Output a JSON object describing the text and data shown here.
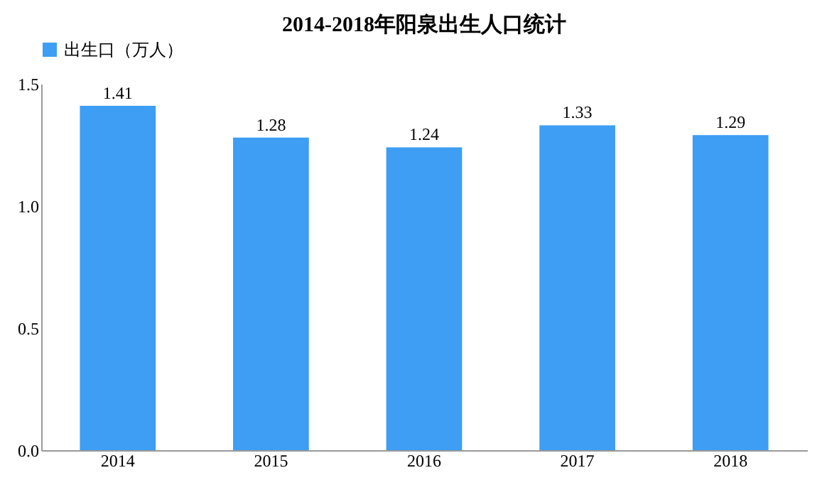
{
  "chart_data": {
    "type": "bar",
    "title": "2014-2018年阳泉出生人口统计",
    "categories": [
      "2014",
      "2015",
      "2016",
      "2017",
      "2018"
    ],
    "series": [
      {
        "name": "出生口（万人）",
        "color": "#3d9ef3",
        "values": [
          1.41,
          1.28,
          1.24,
          1.33,
          1.29
        ]
      }
    ],
    "ylim": [
      0,
      1.5
    ],
    "yticks": [
      {
        "value": 0,
        "label": "0.0"
      },
      {
        "value": 0.5,
        "label": "0.5"
      },
      {
        "value": 1,
        "label": "1.0"
      },
      {
        "value": 1.5,
        "label": "1.5"
      }
    ],
    "data_labels": true,
    "legend": "top",
    "grid": false
  }
}
